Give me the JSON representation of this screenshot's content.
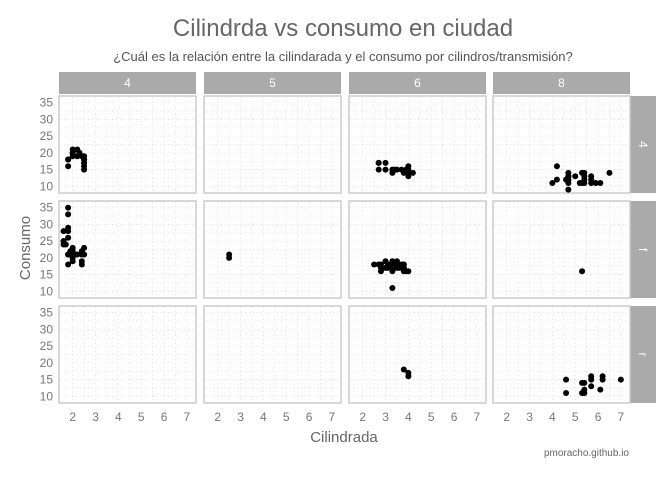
{
  "chart_data": {
    "type": "scatter",
    "title": "Cilindrda vs consumo en ciudad",
    "subtitle": "¿Cuál es la relación entre la cilindarada y el consumo por cilindros/transmisión?",
    "xlabel": "Cilindrada",
    "ylabel": "Consumo",
    "caption": "pmoracho.github.io",
    "col_facets": [
      "4",
      "5",
      "6",
      "8"
    ],
    "row_facets": [
      "4",
      "f",
      "r"
    ],
    "xlim": [
      1.4,
      7.4
    ],
    "ylim": [
      8,
      37
    ],
    "xticks": [
      "2",
      "3",
      "4",
      "5",
      "6",
      "7"
    ],
    "yticks": [
      "10",
      "15",
      "20",
      "25",
      "30",
      "35"
    ],
    "point_color": "#000000",
    "panel_border_color": "#cccccc",
    "strip_color": "#aaaaaa",
    "grid": "dotted",
    "panels": [
      {
        "row": "4",
        "col": "4",
        "points": [
          [
            1.8,
            18
          ],
          [
            1.8,
            16
          ],
          [
            1.8,
            18
          ],
          [
            2.0,
            20
          ],
          [
            2.0,
            19
          ],
          [
            2.0,
            21
          ],
          [
            2.0,
            20
          ],
          [
            2.2,
            21
          ],
          [
            2.2,
            19
          ],
          [
            2.3,
            20
          ],
          [
            2.4,
            19
          ],
          [
            2.5,
            18
          ],
          [
            2.5,
            17
          ],
          [
            2.5,
            19
          ],
          [
            2.5,
            18
          ],
          [
            2.5,
            17
          ],
          [
            2.5,
            16
          ],
          [
            2.5,
            15
          ]
        ]
      },
      {
        "row": "4",
        "col": "5",
        "points": []
      },
      {
        "row": "4",
        "col": "6",
        "points": [
          [
            2.7,
            17
          ],
          [
            2.7,
            15
          ],
          [
            2.7,
            17
          ],
          [
            3.0,
            17
          ],
          [
            3.0,
            15
          ],
          [
            3.3,
            15
          ],
          [
            3.3,
            14
          ],
          [
            3.4,
            15
          ],
          [
            3.5,
            15
          ],
          [
            3.7,
            15
          ],
          [
            3.8,
            14
          ],
          [
            3.9,
            15
          ],
          [
            4.0,
            14
          ],
          [
            4.0,
            13
          ],
          [
            4.0,
            14
          ],
          [
            4.0,
            16
          ],
          [
            4.0,
            15
          ],
          [
            4.2,
            14
          ]
        ]
      },
      {
        "row": "4",
        "col": "8",
        "points": [
          [
            4.0,
            11
          ],
          [
            4.2,
            16
          ],
          [
            4.2,
            12
          ],
          [
            4.6,
            12
          ],
          [
            4.7,
            13
          ],
          [
            4.7,
            11
          ],
          [
            4.7,
            9
          ],
          [
            4.7,
            12
          ],
          [
            4.7,
            13
          ],
          [
            4.7,
            14
          ],
          [
            4.7,
            12
          ],
          [
            5.0,
            13
          ],
          [
            5.2,
            11
          ],
          [
            5.3,
            11
          ],
          [
            5.3,
            14
          ],
          [
            5.4,
            14
          ],
          [
            5.4,
            12
          ],
          [
            5.4,
            11
          ],
          [
            5.4,
            13
          ],
          [
            5.7,
            13
          ],
          [
            5.7,
            11
          ],
          [
            5.7,
            12
          ],
          [
            5.9,
            11
          ],
          [
            6.1,
            11
          ],
          [
            6.5,
            14
          ]
        ]
      },
      {
        "row": "f",
        "col": "4",
        "points": [
          [
            1.6,
            28
          ],
          [
            1.6,
            24
          ],
          [
            1.6,
            25
          ],
          [
            1.6,
            25
          ],
          [
            1.7,
            24
          ],
          [
            1.8,
            26
          ],
          [
            1.8,
            29
          ],
          [
            1.8,
            35
          ],
          [
            1.8,
            33
          ],
          [
            1.8,
            28
          ],
          [
            1.8,
            21
          ],
          [
            1.8,
            18
          ],
          [
            1.8,
            21
          ],
          [
            1.9,
            22
          ],
          [
            1.9,
            21
          ],
          [
            2.0,
            21
          ],
          [
            2.0,
            20
          ],
          [
            2.0,
            22
          ],
          [
            2.0,
            19
          ],
          [
            2.0,
            23
          ],
          [
            2.2,
            21
          ],
          [
            2.4,
            22
          ],
          [
            2.4,
            21
          ],
          [
            2.4,
            19
          ],
          [
            2.4,
            18
          ],
          [
            2.5,
            23
          ],
          [
            2.5,
            21
          ]
        ]
      },
      {
        "row": "f",
        "col": "5",
        "points": [
          [
            2.5,
            21
          ],
          [
            2.5,
            20
          ]
        ]
      },
      {
        "row": "f",
        "col": "6",
        "points": [
          [
            2.5,
            18
          ],
          [
            2.7,
            18
          ],
          [
            2.8,
            16
          ],
          [
            2.8,
            17
          ],
          [
            2.8,
            18
          ],
          [
            3.0,
            19
          ],
          [
            3.0,
            17
          ],
          [
            3.1,
            17
          ],
          [
            3.1,
            18
          ],
          [
            3.3,
            18
          ],
          [
            3.3,
            17
          ],
          [
            3.3,
            19
          ],
          [
            3.3,
            16
          ],
          [
            3.3,
            11
          ],
          [
            3.5,
            18
          ],
          [
            3.5,
            17
          ],
          [
            3.5,
            19
          ],
          [
            3.6,
            17
          ],
          [
            3.7,
            18
          ],
          [
            3.8,
            17
          ],
          [
            3.8,
            16
          ],
          [
            3.8,
            18
          ],
          [
            3.8,
            18
          ],
          [
            3.8,
            17
          ],
          [
            3.9,
            16
          ],
          [
            4.0,
            16
          ]
        ]
      },
      {
        "row": "f",
        "col": "8",
        "points": [
          [
            5.3,
            16
          ]
        ]
      },
      {
        "row": "r",
        "col": "4",
        "points": []
      },
      {
        "row": "r",
        "col": "5",
        "points": []
      },
      {
        "row": "r",
        "col": "6",
        "points": [
          [
            3.8,
            18
          ],
          [
            4.0,
            17
          ],
          [
            4.0,
            16
          ]
        ]
      },
      {
        "row": "r",
        "col": "8",
        "points": [
          [
            4.6,
            15
          ],
          [
            4.6,
            11
          ],
          [
            5.3,
            14
          ],
          [
            5.3,
            11
          ],
          [
            5.4,
            14
          ],
          [
            5.4,
            12
          ],
          [
            5.4,
            11
          ],
          [
            5.7,
            15
          ],
          [
            5.7,
            13
          ],
          [
            5.7,
            16
          ],
          [
            6.1,
            12
          ],
          [
            6.2,
            15
          ],
          [
            6.2,
            16
          ],
          [
            7.0,
            15
          ]
        ]
      }
    ]
  }
}
